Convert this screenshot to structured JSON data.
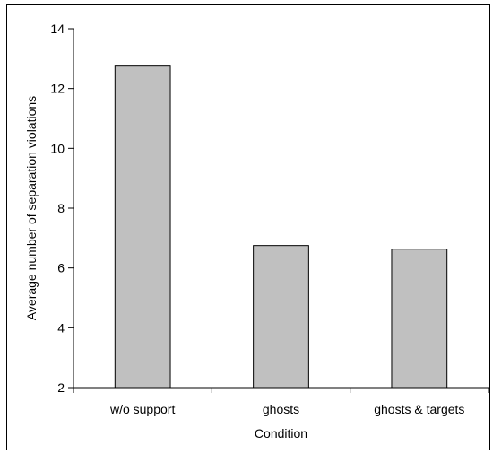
{
  "chart_data": {
    "type": "bar",
    "title": "",
    "xlabel": "Condition",
    "ylabel": "Average number of separation violations",
    "categories": [
      "w/o support",
      "ghosts",
      "ghosts & targets"
    ],
    "values": [
      12.75,
      6.75,
      6.63
    ],
    "ylim": [
      2,
      14
    ],
    "yticks": [
      2,
      4,
      6,
      8,
      10,
      12,
      14
    ],
    "grid": false,
    "legend": "none",
    "colors": {
      "bar_fill": "#c0c0c0",
      "bar_stroke": "#000000",
      "axis": "#000000"
    }
  }
}
